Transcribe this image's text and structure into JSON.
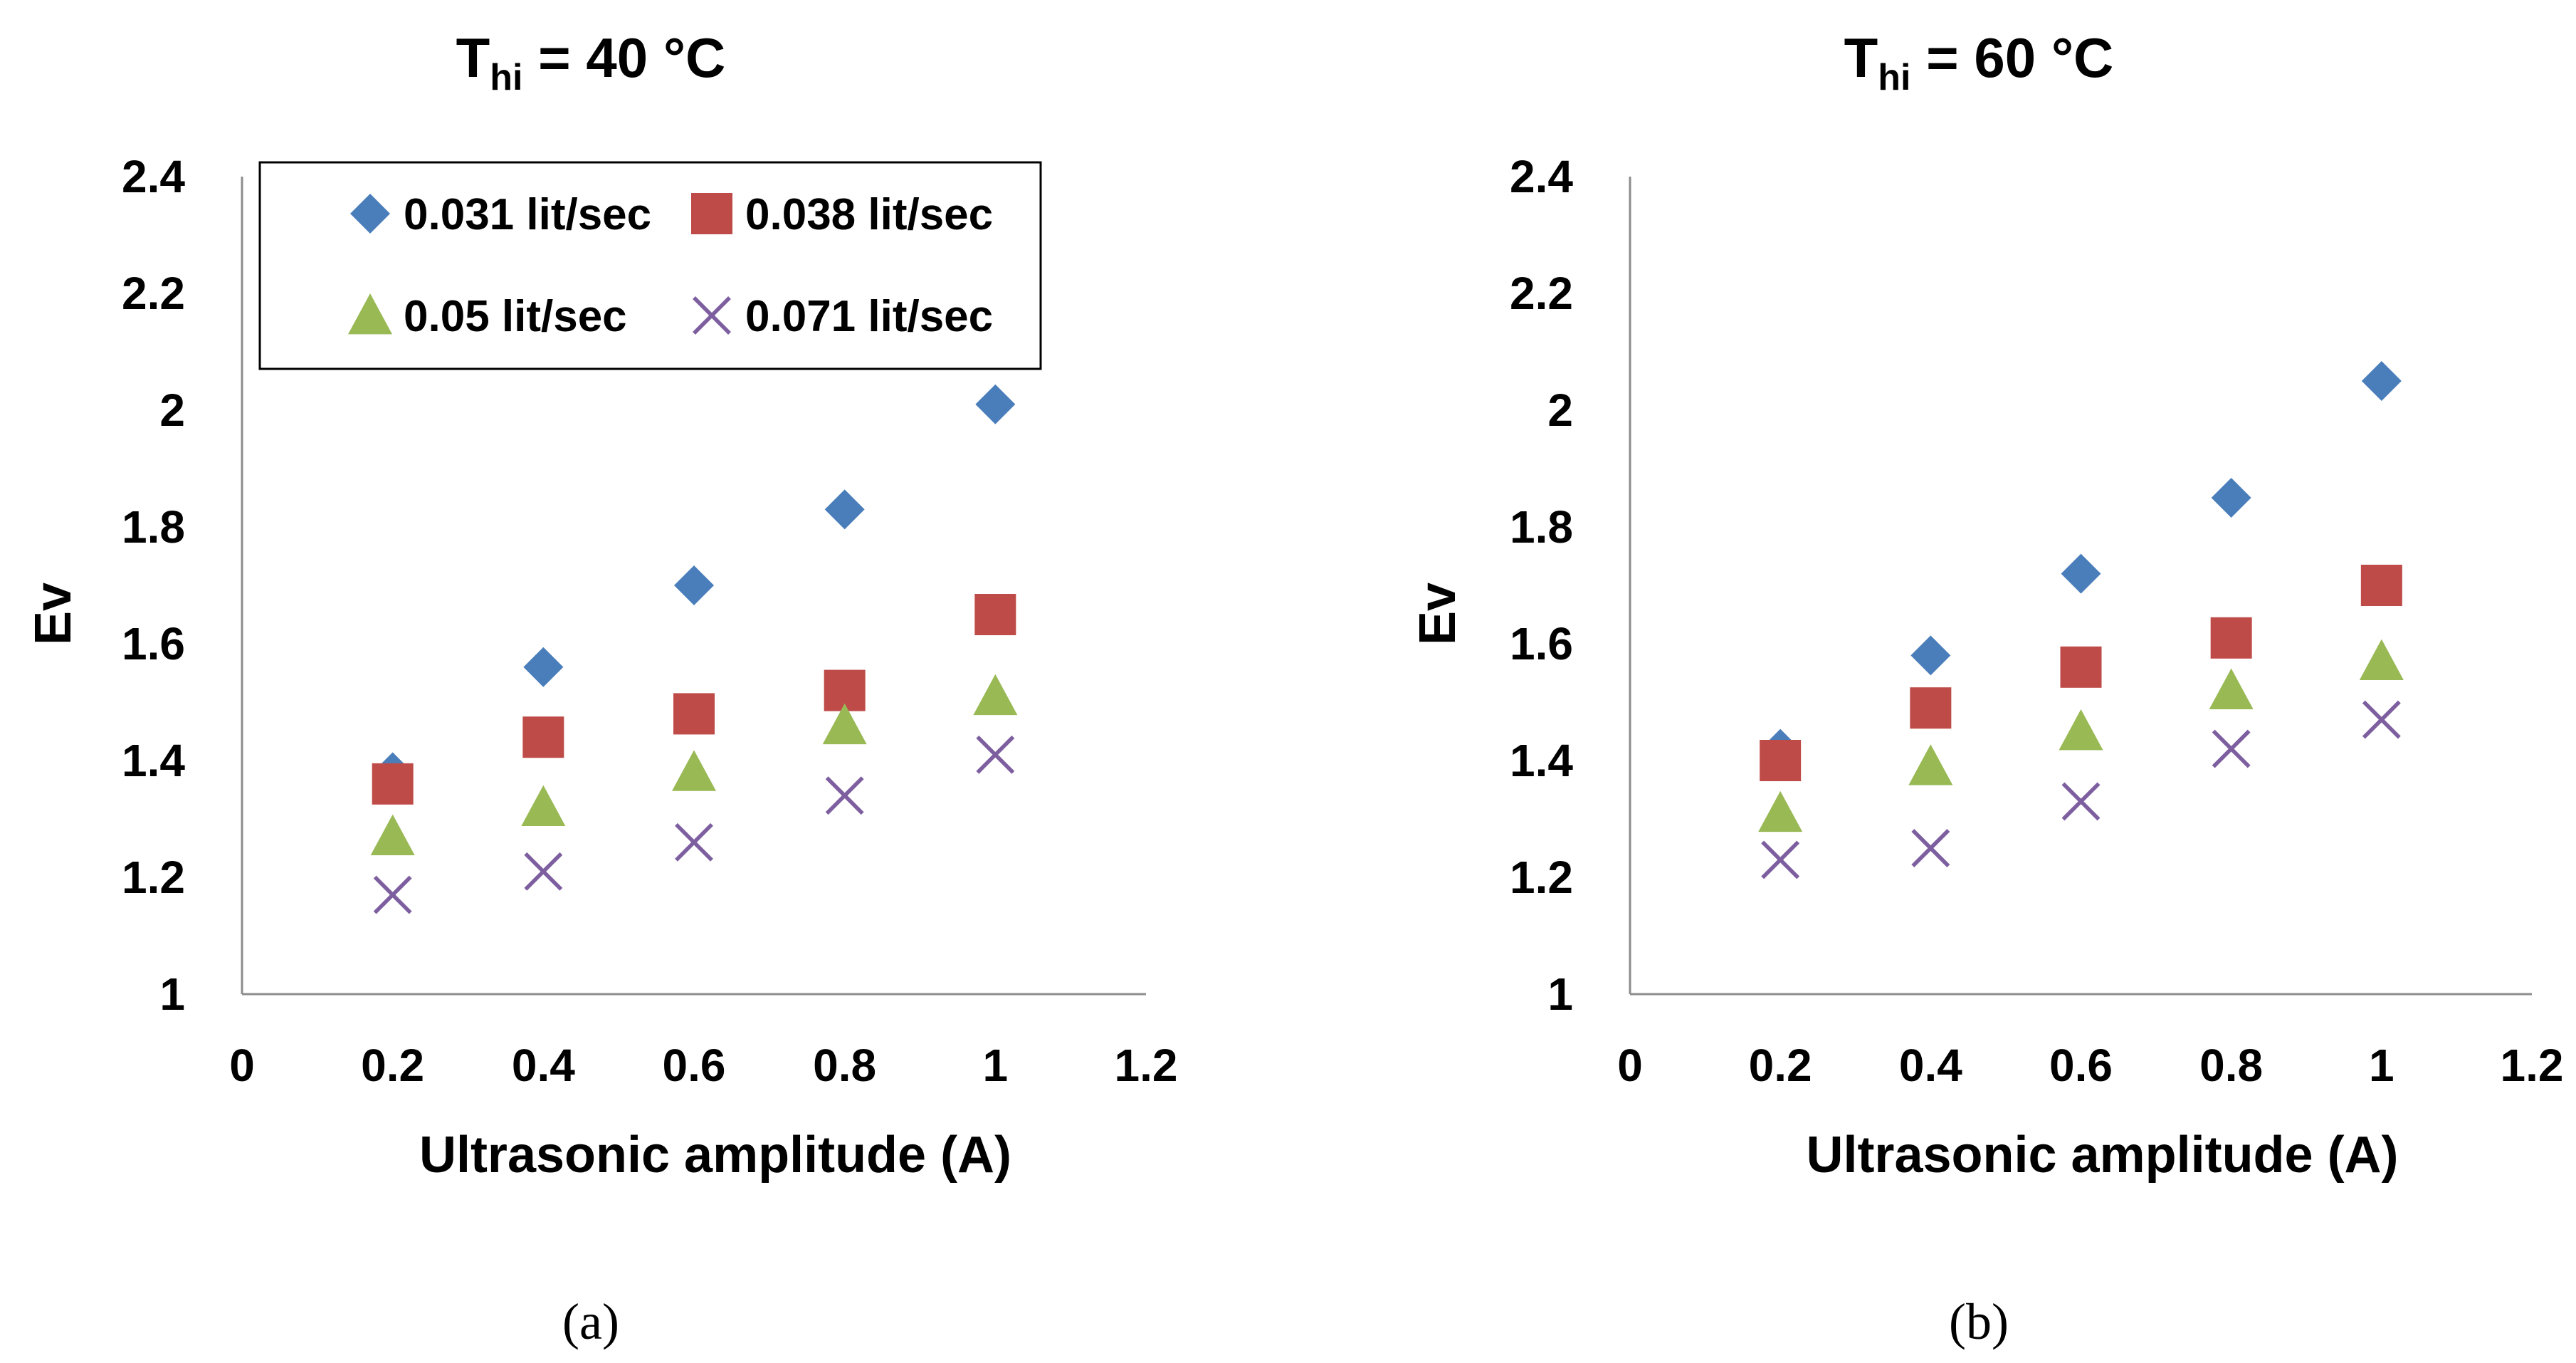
{
  "chart_data": [
    {
      "type": "scatter",
      "title": {
        "main": "T",
        "sub": "hi",
        "rest": " = 40 °C"
      },
      "xlabel": "Ultrasonic amplitude (A)",
      "ylabel": "Ev",
      "xlim": [
        0,
        1.2
      ],
      "ylim": [
        1,
        2.4
      ],
      "xticks": [
        "0",
        "0.2",
        "0.4",
        "0.6",
        "0.8",
        "1",
        "1.2"
      ],
      "yticks": [
        "1",
        "1.2",
        "1.4",
        "1.6",
        "1.8",
        "2",
        "2.2",
        "2.4"
      ],
      "x": [
        0.2,
        0.4,
        0.6,
        0.8,
        1.0
      ],
      "series": [
        {
          "name": "0.031 lit/sec",
          "marker": "diamond",
          "color": "#4a7ebb",
          "values": [
            1.38,
            1.56,
            1.7,
            1.83,
            2.01
          ]
        },
        {
          "name": "0.038 lit/sec",
          "marker": "square",
          "color": "#be4b48",
          "values": [
            1.36,
            1.44,
            1.48,
            1.52,
            1.65
          ]
        },
        {
          "name": "0.05 lit/sec",
          "marker": "triangle",
          "color": "#98b954",
          "values": [
            1.27,
            1.32,
            1.38,
            1.46,
            1.51
          ]
        },
        {
          "name": "0.071 lit/sec",
          "marker": "cross",
          "color": "#7d5fa0",
          "values": [
            1.17,
            1.21,
            1.26,
            1.34,
            1.41
          ]
        }
      ],
      "legend": "top-left",
      "caption": "(a)"
    },
    {
      "type": "scatter",
      "title": {
        "main": "T",
        "sub": "hi",
        "rest": " = 60 °C"
      },
      "xlabel": "Ultrasonic amplitude (A)",
      "ylabel": "Ev",
      "xlim": [
        0,
        1.2
      ],
      "ylim": [
        1,
        2.4
      ],
      "xticks": [
        "0",
        "0.2",
        "0.4",
        "0.6",
        "0.8",
        "1",
        "1.2"
      ],
      "yticks": [
        "1",
        "1.2",
        "1.4",
        "1.6",
        "1.8",
        "2",
        "2.2",
        "2.4"
      ],
      "x": [
        0.2,
        0.4,
        0.6,
        0.8,
        1.0
      ],
      "series": [
        {
          "name": "0.031 lit/sec",
          "marker": "diamond",
          "color": "#4a7ebb",
          "values": [
            1.42,
            1.58,
            1.72,
            1.85,
            2.05
          ]
        },
        {
          "name": "0.038 lit/sec",
          "marker": "square",
          "color": "#be4b48",
          "values": [
            1.4,
            1.49,
            1.56,
            1.61,
            1.7
          ]
        },
        {
          "name": "0.05 lit/sec",
          "marker": "triangle",
          "color": "#98b954",
          "values": [
            1.31,
            1.39,
            1.45,
            1.52,
            1.57
          ]
        },
        {
          "name": "0.071 lit/sec",
          "marker": "cross",
          "color": "#7d5fa0",
          "values": [
            1.23,
            1.25,
            1.33,
            1.42,
            1.47
          ]
        }
      ],
      "legend": "none",
      "caption": "(b)"
    }
  ]
}
